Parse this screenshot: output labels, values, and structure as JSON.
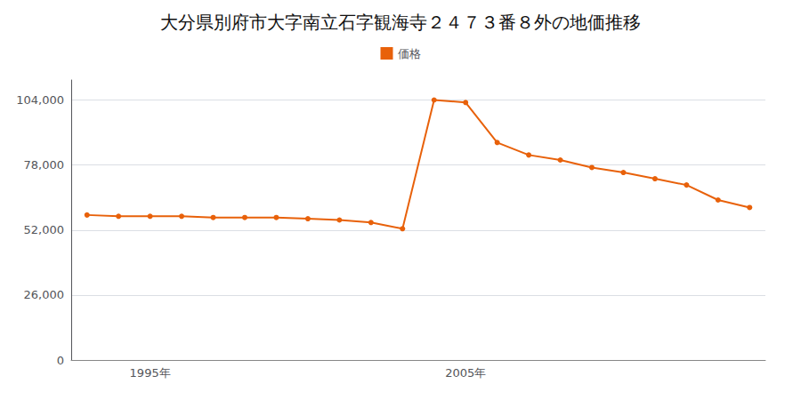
{
  "chart_data": {
    "type": "line",
    "title": "大分県別府市大字南立石字観海寺２４７３番８外の地価推移",
    "x": [
      1993,
      1994,
      1995,
      1996,
      1997,
      1998,
      1999,
      2000,
      2001,
      2002,
      2003,
      2004,
      2005,
      2006,
      2007,
      2008,
      2009,
      2010,
      2011,
      2012,
      2013,
      2014
    ],
    "series": [
      {
        "name": "価格",
        "color": "#E8610A",
        "values": [
          58000,
          57500,
          57500,
          57500,
          57000,
          57000,
          57000,
          56500,
          56000,
          55000,
          52500,
          104000,
          103000,
          87000,
          82000,
          80000,
          77000,
          75000,
          72500,
          70000,
          64000,
          61000
        ]
      }
    ],
    "xlim": [
      1992.5,
      2014.5
    ],
    "xticks": [
      {
        "value": 1995,
        "label": "1995年"
      },
      {
        "value": 2005,
        "label": "2005年"
      }
    ],
    "ylim": [
      0,
      112000
    ],
    "yticks": [
      0,
      {
        "value": 26000,
        "label": "26,000"
      },
      {
        "value": 52000,
        "label": "52,000"
      },
      {
        "value": 78000,
        "label": "78,000"
      },
      {
        "value": 104000,
        "label": "104,000"
      }
    ],
    "grid": true,
    "legend": "top",
    "marker": "circle"
  }
}
